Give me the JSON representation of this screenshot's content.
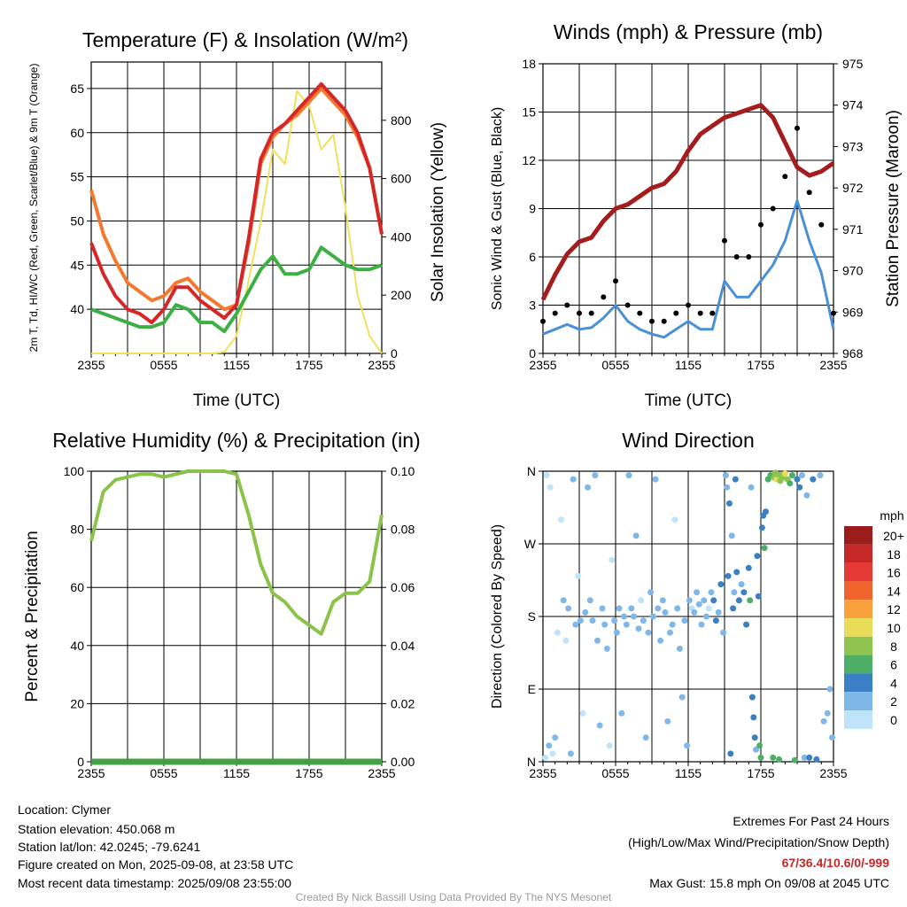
{
  "chart_data": [
    {
      "type": "line",
      "title": "Temperature (F) & Insolation (W/m²)",
      "xlabel": "Time (UTC)",
      "ylabel_left": "2m T, Td, HI/WC (Red, Green, Scarlet/Blue) & 9m T (Orange)",
      "ylabel_right": "Solar Insolation (Yellow)",
      "x_ticks": [
        "2355",
        "0555",
        "1155",
        "1755",
        "2355"
      ],
      "ylim": [
        35,
        68
      ],
      "y_ticks": [
        40,
        45,
        50,
        55,
        60,
        65
      ],
      "y2lim": [
        0,
        1000
      ],
      "y2_ticks": [
        0,
        200,
        400,
        600,
        800
      ],
      "x_hours": [
        0,
        1,
        2,
        3,
        4,
        5,
        6,
        7,
        8,
        9,
        10,
        11,
        12,
        13,
        14,
        15,
        16,
        17,
        18,
        19,
        20,
        21,
        22,
        23,
        24
      ],
      "series": [
        {
          "name": "2m T",
          "color": "#d62728",
          "axis": "left",
          "values": [
            47.5,
            44,
            41.5,
            40,
            39.5,
            38.5,
            40,
            42.5,
            42.5,
            41,
            40,
            39,
            40.5,
            48,
            57,
            60,
            61,
            62.5,
            64,
            65.5,
            64,
            62.5,
            60,
            56,
            48.5
          ]
        },
        {
          "name": "9m T",
          "color": "#f4792e",
          "axis": "left",
          "values": [
            53.5,
            48.5,
            45.5,
            43,
            42,
            41,
            41.5,
            43,
            43.5,
            42,
            41,
            40,
            40.5,
            47.5,
            56.5,
            59.5,
            61,
            62,
            63.5,
            65,
            63.5,
            62,
            59.5,
            56,
            48.5
          ]
        },
        {
          "name": "Td",
          "color": "#3cb043",
          "axis": "left",
          "values": [
            40,
            39.5,
            39,
            38.5,
            38,
            38,
            38.5,
            40.5,
            40,
            38.5,
            38.5,
            37.5,
            39.5,
            42,
            44.5,
            46,
            44,
            44,
            44.5,
            47,
            46,
            45,
            44.5,
            44.5,
            45
          ]
        },
        {
          "name": "Solar Insolation",
          "color": "#f1e15a",
          "axis": "right",
          "values": [
            0,
            0,
            0,
            0,
            0,
            0,
            0,
            0,
            0,
            0,
            0,
            5,
            60,
            250,
            450,
            700,
            650,
            900,
            850,
            700,
            750,
            500,
            200,
            60,
            0
          ]
        }
      ]
    },
    {
      "type": "line",
      "title": "Winds (mph) & Pressure (mb)",
      "xlabel": "Time (UTC)",
      "ylabel_left": "Sonic Wind & Gust (Blue, Black)",
      "ylabel_right": "Station Pressure (Maroon)",
      "x_ticks": [
        "2355",
        "0555",
        "1155",
        "1755",
        "2355"
      ],
      "ylim": [
        0,
        18
      ],
      "y_ticks": [
        0,
        3,
        6,
        9,
        12,
        15,
        18
      ],
      "y2lim": [
        968,
        975
      ],
      "y2_ticks": [
        968,
        969,
        970,
        971,
        972,
        973,
        974,
        975
      ],
      "x_hours": [
        0,
        1,
        2,
        3,
        4,
        5,
        6,
        7,
        8,
        9,
        10,
        11,
        12,
        13,
        14,
        15,
        16,
        17,
        18,
        19,
        20,
        21,
        22,
        23,
        24
      ],
      "series": [
        {
          "name": "Sonic Wind",
          "color": "#4a90d9",
          "axis": "left",
          "values": [
            1.2,
            1.5,
            1.8,
            1.5,
            1.6,
            2.2,
            3,
            2,
            1.5,
            1.2,
            1,
            1.5,
            2,
            1.5,
            1.5,
            4.5,
            3.5,
            3.5,
            4.5,
            5.5,
            7,
            9.5,
            7,
            5,
            1.5
          ]
        },
        {
          "name": "Gust",
          "color": "#000000",
          "axis": "left",
          "values": [
            2,
            2.5,
            3,
            2.5,
            2.5,
            3.5,
            4.5,
            3,
            2.5,
            2,
            2,
            2.5,
            3,
            2.5,
            2.5,
            7,
            6,
            6,
            8,
            9,
            11,
            14,
            10,
            8,
            2.5
          ]
        },
        {
          "name": "Station Pressure",
          "color": "#a61c1c",
          "axis": "right",
          "values": [
            969.3,
            969.9,
            970.4,
            970.7,
            970.8,
            971.2,
            971.5,
            971.6,
            971.8,
            972,
            972.1,
            972.4,
            972.9,
            973.3,
            973.5,
            973.7,
            973.8,
            973.9,
            974.0,
            973.7,
            973.1,
            972.5,
            972.3,
            972.4,
            972.6
          ]
        }
      ]
    },
    {
      "type": "line",
      "title": "Relative Humidity (%) & Precipitation (in)",
      "ylabel_left": "Percent & Precipitation",
      "x_ticks": [
        "2355",
        "0555",
        "1155",
        "1755",
        "2355"
      ],
      "ylim": [
        0,
        100
      ],
      "y_ticks": [
        0,
        20,
        40,
        60,
        80,
        100
      ],
      "y2lim": [
        0,
        0.1
      ],
      "y2_ticks": [
        "0.00",
        "0.02",
        "0.04",
        "0.06",
        "0.08",
        "0.10"
      ],
      "x_hours": [
        0,
        1,
        2,
        3,
        4,
        5,
        6,
        7,
        8,
        9,
        10,
        11,
        12,
        13,
        14,
        15,
        16,
        17,
        18,
        19,
        20,
        21,
        22,
        23,
        24
      ],
      "series": [
        {
          "name": "Relative Humidity",
          "color": "#8bc34a",
          "axis": "left",
          "values": [
            76,
            93,
            97,
            98,
            99,
            99,
            98,
            99,
            100,
            100,
            100,
            100,
            99,
            85,
            68,
            58,
            55,
            50,
            47,
            44,
            55,
            58,
            58,
            62,
            85
          ]
        },
        {
          "name": "Precipitation",
          "color": "#43a047",
          "axis": "right",
          "values": [
            0,
            0,
            0,
            0,
            0,
            0,
            0,
            0,
            0,
            0,
            0,
            0,
            0,
            0,
            0,
            0,
            0,
            0,
            0,
            0,
            0,
            0,
            0,
            0,
            0
          ]
        }
      ]
    },
    {
      "type": "scatter",
      "title": "Wind Direction",
      "ylabel_left": "Direction (Colored By Speed)",
      "x_ticks": [
        "2355",
        "0555",
        "1155",
        "1755",
        "2355"
      ],
      "y_ticks": [
        "N",
        "E",
        "S",
        "W",
        "N"
      ],
      "ylim": [
        0,
        360
      ],
      "legend_title": "mph",
      "legend_labels": [
        "20+",
        "18",
        "16",
        "14",
        "12",
        "10",
        "8",
        "6",
        "4",
        "2",
        "0"
      ],
      "legend_colors": [
        "#9b1c1c",
        "#c62828",
        "#e53935",
        "#f0632c",
        "#f9a13c",
        "#e8dc58",
        "#8ec44f",
        "#4caf65",
        "#3b80c4",
        "#7fb8e8",
        "#bfe3f8"
      ],
      "points": [
        {
          "h": 0.2,
          "d": 5,
          "s": 1
        },
        {
          "h": 0.3,
          "d": 355,
          "s": 1
        },
        {
          "h": 0.5,
          "d": 20,
          "s": 2
        },
        {
          "h": 0.6,
          "d": 340,
          "s": 1
        },
        {
          "h": 0.8,
          "d": 10,
          "s": 1
        },
        {
          "h": 1.0,
          "d": 30,
          "s": 2
        },
        {
          "h": 1.2,
          "d": 160,
          "s": 1
        },
        {
          "h": 1.5,
          "d": 300,
          "s": 1
        },
        {
          "h": 1.7,
          "d": 200,
          "s": 2
        },
        {
          "h": 1.9,
          "d": 150,
          "s": 1
        },
        {
          "h": 2.1,
          "d": 190,
          "s": 2
        },
        {
          "h": 2.3,
          "d": 10,
          "s": 2
        },
        {
          "h": 2.5,
          "d": 350,
          "s": 3
        },
        {
          "h": 2.7,
          "d": 170,
          "s": 2
        },
        {
          "h": 2.9,
          "d": 230,
          "s": 1
        },
        {
          "h": 3.1,
          "d": 175,
          "s": 3
        },
        {
          "h": 3.3,
          "d": 60,
          "s": 1
        },
        {
          "h": 3.5,
          "d": 185,
          "s": 2
        },
        {
          "h": 3.7,
          "d": 340,
          "s": 2
        },
        {
          "h": 3.9,
          "d": 200,
          "s": 3
        },
        {
          "h": 4.1,
          "d": 175,
          "s": 2
        },
        {
          "h": 4.3,
          "d": 355,
          "s": 3
        },
        {
          "h": 4.5,
          "d": 150,
          "s": 2
        },
        {
          "h": 4.7,
          "d": 45,
          "s": 2
        },
        {
          "h": 4.9,
          "d": 190,
          "s": 2
        },
        {
          "h": 5.1,
          "d": 170,
          "s": 3
        },
        {
          "h": 5.3,
          "d": 140,
          "s": 2
        },
        {
          "h": 5.5,
          "d": 20,
          "s": 1
        },
        {
          "h": 5.7,
          "d": 250,
          "s": 1
        },
        {
          "h": 5.9,
          "d": 175,
          "s": 2
        },
        {
          "h": 6.1,
          "d": 160,
          "s": 3
        },
        {
          "h": 6.3,
          "d": 190,
          "s": 2
        },
        {
          "h": 6.5,
          "d": 60,
          "s": 2
        },
        {
          "h": 6.7,
          "d": 180,
          "s": 2
        },
        {
          "h": 6.9,
          "d": 170,
          "s": 3
        },
        {
          "h": 7.1,
          "d": 355,
          "s": 2
        },
        {
          "h": 7.3,
          "d": 190,
          "s": 3
        },
        {
          "h": 7.5,
          "d": 180,
          "s": 2
        },
        {
          "h": 7.7,
          "d": 280,
          "s": 2
        },
        {
          "h": 7.9,
          "d": 165,
          "s": 2
        },
        {
          "h": 8.1,
          "d": 200,
          "s": 1
        },
        {
          "h": 8.3,
          "d": 175,
          "s": 3
        },
        {
          "h": 8.5,
          "d": 30,
          "s": 2
        },
        {
          "h": 8.7,
          "d": 160,
          "s": 3
        },
        {
          "h": 8.9,
          "d": 210,
          "s": 2
        },
        {
          "h": 9.1,
          "d": 180,
          "s": 2
        },
        {
          "h": 9.3,
          "d": 350,
          "s": 3
        },
        {
          "h": 9.5,
          "d": 190,
          "s": 2
        },
        {
          "h": 9.7,
          "d": 150,
          "s": 2
        },
        {
          "h": 9.9,
          "d": 200,
          "s": 3
        },
        {
          "h": 10.1,
          "d": 185,
          "s": 2
        },
        {
          "h": 10.3,
          "d": 50,
          "s": 2
        },
        {
          "h": 10.5,
          "d": 160,
          "s": 3
        },
        {
          "h": 10.7,
          "d": 170,
          "s": 2
        },
        {
          "h": 10.9,
          "d": 300,
          "s": 1
        },
        {
          "h": 11.1,
          "d": 190,
          "s": 2
        },
        {
          "h": 11.3,
          "d": 140,
          "s": 2
        },
        {
          "h": 11.5,
          "d": 80,
          "s": 2
        },
        {
          "h": 11.7,
          "d": 175,
          "s": 3
        },
        {
          "h": 11.9,
          "d": 20,
          "s": 2
        },
        {
          "h": 12.1,
          "d": 200,
          "s": 2
        },
        {
          "h": 12.3,
          "d": 190,
          "s": 1
        },
        {
          "h": 12.5,
          "d": 185,
          "s": 2
        },
        {
          "h": 12.7,
          "d": 210,
          "s": 2
        },
        {
          "h": 12.9,
          "d": 195,
          "s": 2
        },
        {
          "h": 13.1,
          "d": 170,
          "s": 3
        },
        {
          "h": 13.3,
          "d": 200,
          "s": 3
        },
        {
          "h": 13.5,
          "d": 180,
          "s": 2
        },
        {
          "h": 13.7,
          "d": 190,
          "s": 1
        },
        {
          "h": 13.9,
          "d": 210,
          "s": 3
        },
        {
          "h": 14.1,
          "d": 200,
          "s": 4
        },
        {
          "h": 14.3,
          "d": 175,
          "s": 4
        },
        {
          "h": 14.5,
          "d": 185,
          "s": 3
        },
        {
          "h": 14.7,
          "d": 220,
          "s": 4
        },
        {
          "h": 14.9,
          "d": 160,
          "s": 3
        },
        {
          "h": 15.1,
          "d": 355,
          "s": 3
        },
        {
          "h": 15.2,
          "d": 340,
          "s": 3
        },
        {
          "h": 15.3,
          "d": 230,
          "s": 5
        },
        {
          "h": 15.4,
          "d": 320,
          "s": 4
        },
        {
          "h": 15.5,
          "d": 10,
          "s": 4
        },
        {
          "h": 15.6,
          "d": 280,
          "s": 3
        },
        {
          "h": 15.7,
          "d": 190,
          "s": 4
        },
        {
          "h": 15.8,
          "d": 210,
          "s": 3
        },
        {
          "h": 15.9,
          "d": 350,
          "s": 4
        },
        {
          "h": 16.0,
          "d": 235,
          "s": 4
        },
        {
          "h": 16.2,
          "d": 200,
          "s": 4
        },
        {
          "h": 16.4,
          "d": 220,
          "s": 3
        },
        {
          "h": 16.6,
          "d": 210,
          "s": 4
        },
        {
          "h": 16.8,
          "d": 170,
          "s": 5
        },
        {
          "h": 17.0,
          "d": 240,
          "s": 5
        },
        {
          "h": 17.1,
          "d": 200,
          "s": 6
        },
        {
          "h": 17.2,
          "d": 340,
          "s": 3
        },
        {
          "h": 17.3,
          "d": 80,
          "s": 4
        },
        {
          "h": 17.4,
          "d": 55,
          "s": 4
        },
        {
          "h": 17.5,
          "d": 30,
          "s": 5
        },
        {
          "h": 17.6,
          "d": 15,
          "s": 3
        },
        {
          "h": 17.7,
          "d": 255,
          "s": 4
        },
        {
          "h": 17.8,
          "d": 205,
          "s": 4
        },
        {
          "h": 17.9,
          "d": 20,
          "s": 6
        },
        {
          "h": 18.0,
          "d": 5,
          "s": 7
        },
        {
          "h": 18.1,
          "d": 290,
          "s": 5
        },
        {
          "h": 18.2,
          "d": 305,
          "s": 5
        },
        {
          "h": 18.3,
          "d": 265,
          "s": 6
        },
        {
          "h": 18.4,
          "d": 310,
          "s": 4
        },
        {
          "h": 18.6,
          "d": 350,
          "s": 6
        },
        {
          "h": 18.8,
          "d": 355,
          "s": 7
        },
        {
          "h": 19.0,
          "d": 5,
          "s": 7
        },
        {
          "h": 19.1,
          "d": 352,
          "s": 8
        },
        {
          "h": 19.2,
          "d": 358,
          "s": 9
        },
        {
          "h": 19.3,
          "d": 350,
          "s": 10
        },
        {
          "h": 19.4,
          "d": 356,
          "s": 9
        },
        {
          "h": 19.5,
          "d": 3,
          "s": 7
        },
        {
          "h": 19.6,
          "d": 348,
          "s": 8
        },
        {
          "h": 19.7,
          "d": 355,
          "s": 9
        },
        {
          "h": 19.8,
          "d": 352,
          "s": 8
        },
        {
          "h": 20.0,
          "d": 357,
          "s": 10
        },
        {
          "h": 20.2,
          "d": 350,
          "s": 8
        },
        {
          "h": 20.4,
          "d": 345,
          "s": 7
        },
        {
          "h": 20.6,
          "d": 355,
          "s": 6
        },
        {
          "h": 20.8,
          "d": 2,
          "s": 6
        },
        {
          "h": 21.0,
          "d": 350,
          "s": 5
        },
        {
          "h": 21.2,
          "d": 340,
          "s": 4
        },
        {
          "h": 21.4,
          "d": 355,
          "s": 3
        },
        {
          "h": 21.6,
          "d": 5,
          "s": 3
        },
        {
          "h": 21.8,
          "d": 330,
          "s": 2
        },
        {
          "h": 22.0,
          "d": 5,
          "s": 5
        },
        {
          "h": 22.3,
          "d": 350,
          "s": 4
        },
        {
          "h": 22.6,
          "d": 3,
          "s": 4
        },
        {
          "h": 22.9,
          "d": 355,
          "s": 3
        },
        {
          "h": 23.2,
          "d": 50,
          "s": 3
        },
        {
          "h": 23.5,
          "d": 60,
          "s": 2
        },
        {
          "h": 23.7,
          "d": 90,
          "s": 2
        },
        {
          "h": 23.9,
          "d": 30,
          "s": 2
        }
      ]
    }
  ],
  "footer": {
    "location": "Location: Clymer",
    "elevation": "Station elevation: 450.068 m",
    "latlon": "Station lat/lon: 42.0245; -79.6241",
    "created": "Figure created on Mon, 2025-09-08, at 23:58 UTC",
    "recent": "Most recent data timestamp: 2025/09/08 23:55:00",
    "extremes_title": "Extremes For Past 24 Hours",
    "extremes_subtitle": "(High/Low/Max Wind/Precipitation/Snow Depth)",
    "extremes_values": "67/36.4/10.6/0/-999",
    "max_gust": "Max Gust: 15.8 mph On 09/08 at 2045 UTC",
    "credit": "Created By Nick Bassill Using Data Provided By The NYS Mesonet"
  }
}
